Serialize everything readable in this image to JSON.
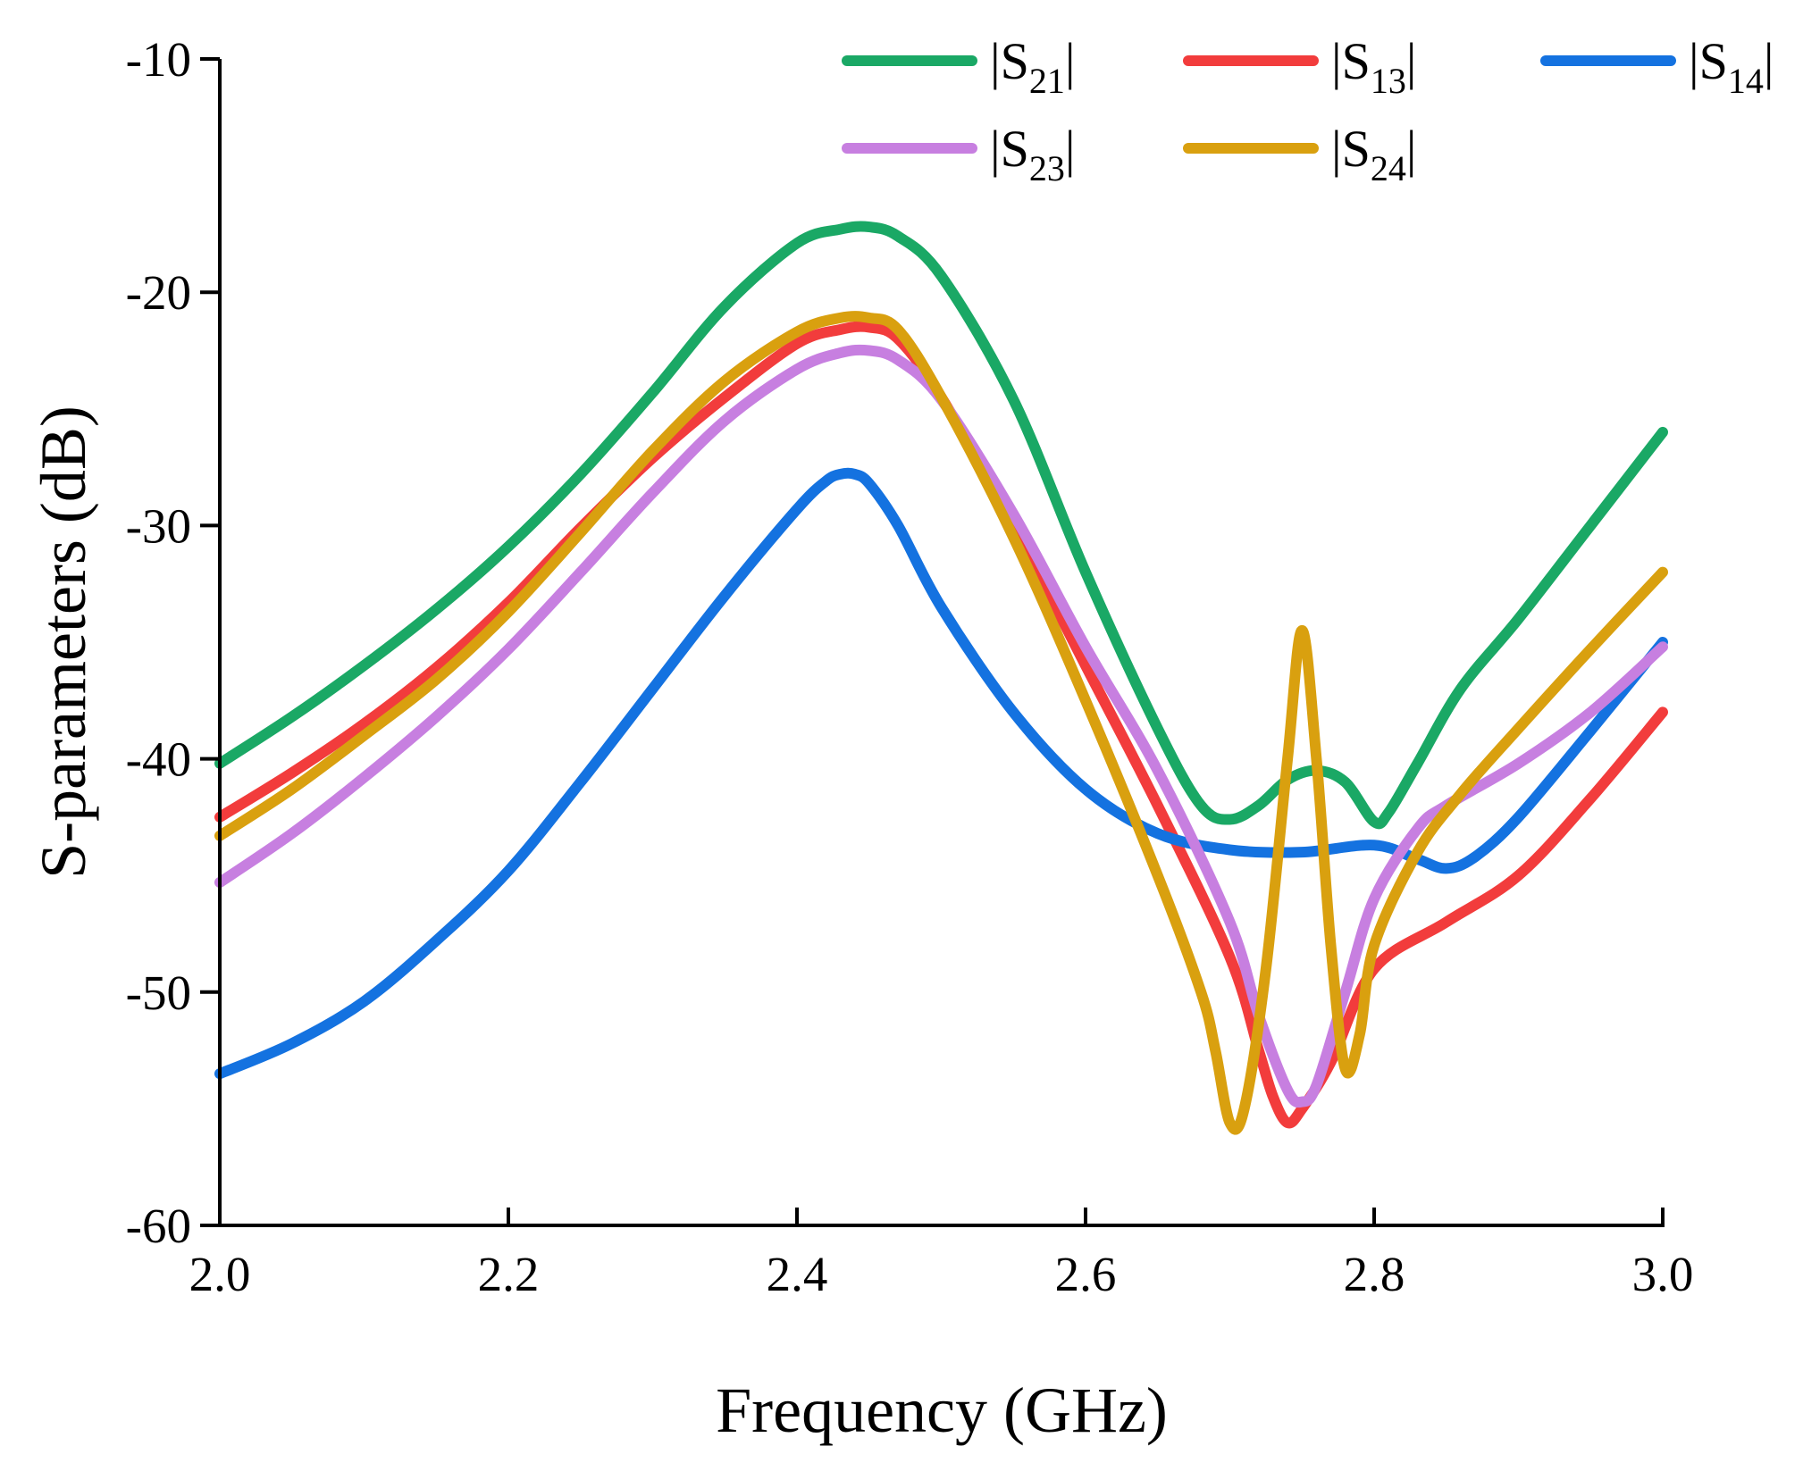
{
  "chart_data": {
    "type": "line",
    "title": "",
    "xlabel": "Frequency (GHz)",
    "ylabel": "S-parameters (dB)",
    "xlim": [
      2.0,
      3.0
    ],
    "ylim": [
      -60,
      -10
    ],
    "xticks": [
      2.0,
      2.2,
      2.4,
      2.6,
      2.8,
      3.0
    ],
    "xtick_labels": [
      "2.0",
      "2.2",
      "2.4",
      "2.6",
      "2.8",
      "3.0"
    ],
    "yticks": [
      -60,
      -50,
      -40,
      -30,
      -20,
      -10
    ],
    "ytick_labels": [
      "-60",
      "-50",
      "-40",
      "-30",
      "-20",
      "-10"
    ],
    "grid": false,
    "legend_position": "top-right",
    "series": [
      {
        "name": "|S21|",
        "base": "|S",
        "sub": "21",
        "end": "|",
        "color": "#1aa865",
        "x": [
          2.0,
          2.05,
          2.1,
          2.15,
          2.2,
          2.25,
          2.3,
          2.35,
          2.4,
          2.43,
          2.45,
          2.47,
          2.5,
          2.55,
          2.6,
          2.65,
          2.68,
          2.7,
          2.72,
          2.74,
          2.76,
          2.78,
          2.8,
          2.81,
          2.83,
          2.86,
          2.9,
          2.95,
          3.0
        ],
        "y": [
          -40.2,
          -38.2,
          -36.0,
          -33.6,
          -30.9,
          -27.8,
          -24.3,
          -20.6,
          -17.9,
          -17.3,
          -17.2,
          -17.6,
          -19.3,
          -24.6,
          -32.0,
          -38.7,
          -42.0,
          -42.6,
          -42.0,
          -40.9,
          -40.5,
          -41.0,
          -42.7,
          -42.3,
          -40.2,
          -37.0,
          -34.0,
          -30.0,
          -26.0
        ]
      },
      {
        "name": "|S13|",
        "base": "|S",
        "sub": "13",
        "end": "|",
        "color": "#f23c3c",
        "x": [
          2.0,
          2.05,
          2.1,
          2.15,
          2.2,
          2.25,
          2.3,
          2.35,
          2.4,
          2.43,
          2.45,
          2.47,
          2.5,
          2.55,
          2.6,
          2.65,
          2.7,
          2.72,
          2.73,
          2.74,
          2.75,
          2.77,
          2.8,
          2.85,
          2.9,
          2.95,
          3.0
        ],
        "y": [
          -42.5,
          -40.6,
          -38.5,
          -36.1,
          -33.3,
          -30.1,
          -27.1,
          -24.5,
          -22.2,
          -21.6,
          -21.5,
          -22.0,
          -24.5,
          -30.0,
          -36.0,
          -42.0,
          -48.5,
          -52.5,
          -54.5,
          -55.6,
          -55.0,
          -53.0,
          -49.0,
          -47.0,
          -45.0,
          -41.7,
          -38.0
        ]
      },
      {
        "name": "|S14|",
        "base": "|S",
        "sub": "14",
        "end": "|",
        "color": "#1472e0",
        "x": [
          2.0,
          2.05,
          2.1,
          2.15,
          2.2,
          2.25,
          2.3,
          2.35,
          2.4,
          2.42,
          2.43,
          2.44,
          2.45,
          2.47,
          2.5,
          2.55,
          2.6,
          2.65,
          2.7,
          2.75,
          2.8,
          2.83,
          2.85,
          2.87,
          2.9,
          2.95,
          3.0
        ],
        "y": [
          -53.5,
          -52.2,
          -50.4,
          -47.8,
          -44.8,
          -41.0,
          -37.0,
          -33.0,
          -29.3,
          -28.1,
          -27.8,
          -27.8,
          -28.2,
          -30.0,
          -33.5,
          -38.0,
          -41.3,
          -43.2,
          -43.9,
          -44.0,
          -43.7,
          -44.3,
          -44.7,
          -44.2,
          -42.5,
          -38.8,
          -35.0
        ]
      },
      {
        "name": "|S23|",
        "base": "|S",
        "sub": "23",
        "end": "|",
        "color": "#c77fe0",
        "x": [
          2.0,
          2.05,
          2.1,
          2.15,
          2.2,
          2.25,
          2.3,
          2.35,
          2.4,
          2.43,
          2.45,
          2.47,
          2.5,
          2.55,
          2.6,
          2.65,
          2.7,
          2.72,
          2.74,
          2.75,
          2.76,
          2.78,
          2.8,
          2.83,
          2.85,
          2.9,
          2.95,
          3.0
        ],
        "y": [
          -45.3,
          -43.2,
          -40.8,
          -38.2,
          -35.3,
          -32.0,
          -28.6,
          -25.5,
          -23.3,
          -22.6,
          -22.5,
          -22.9,
          -24.6,
          -29.5,
          -35.2,
          -40.5,
          -47.0,
          -51.0,
          -54.2,
          -54.7,
          -54.0,
          -50.0,
          -46.0,
          -43.0,
          -42.0,
          -40.2,
          -38.0,
          -35.2
        ]
      },
      {
        "name": "|S24|",
        "base": "|S",
        "sub": "24",
        "end": "|",
        "color": "#d9a00f",
        "x": [
          2.0,
          2.05,
          2.1,
          2.15,
          2.2,
          2.25,
          2.3,
          2.35,
          2.4,
          2.43,
          2.45,
          2.47,
          2.5,
          2.55,
          2.6,
          2.65,
          2.68,
          2.69,
          2.7,
          2.71,
          2.725,
          2.74,
          2.75,
          2.76,
          2.77,
          2.78,
          2.79,
          2.8,
          2.83,
          2.86,
          2.9,
          2.95,
          3.0
        ],
        "y": [
          -43.3,
          -41.3,
          -39.0,
          -36.6,
          -33.7,
          -30.3,
          -26.8,
          -23.8,
          -21.7,
          -21.1,
          -21.1,
          -21.6,
          -24.5,
          -30.5,
          -37.5,
          -45.0,
          -50.0,
          -52.5,
          -55.6,
          -55.0,
          -49.0,
          -40.0,
          -34.5,
          -40.0,
          -48.0,
          -53.3,
          -51.8,
          -48.0,
          -44.0,
          -41.5,
          -38.7,
          -35.3,
          -32.0
        ]
      }
    ]
  }
}
